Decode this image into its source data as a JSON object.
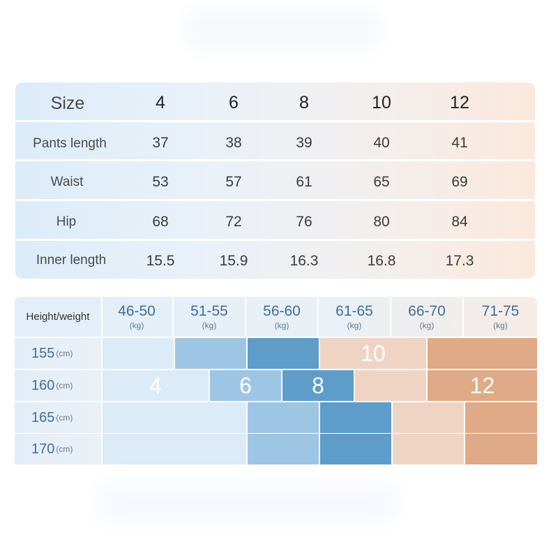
{
  "size_table": {
    "header": {
      "label": "Size",
      "sizes": [
        "4",
        "6",
        "8",
        "10",
        "12"
      ]
    },
    "rows": [
      {
        "label": "Pants length",
        "values": [
          "37",
          "38",
          "39",
          "40",
          "41"
        ]
      },
      {
        "label": "Waist",
        "values": [
          "53",
          "57",
          "61",
          "65",
          "69"
        ]
      },
      {
        "label": "Hip",
        "values": [
          "68",
          "72",
          "76",
          "80",
          "84"
        ]
      },
      {
        "label": "Inner length",
        "values": [
          "15.5",
          "15.9",
          "16.3",
          "16.8",
          "17.3"
        ]
      }
    ]
  },
  "chart_table": {
    "corner_label": "Height/weight",
    "weight_unit": "(kg)",
    "height_unit": "(cm)",
    "weights": [
      "46-50",
      "51-55",
      "56-60",
      "61-65",
      "66-70",
      "71-75"
    ],
    "heights": [
      "155",
      "160",
      "165",
      "170"
    ],
    "size_labels": {
      "r155_10": "10",
      "r160_4": "4",
      "r160_6": "6",
      "r160_8": "8",
      "r160_12": "12"
    },
    "colors": {
      "size4": "#dbebf8",
      "size6": "#9dc6e4",
      "size8": "#5e9dc9",
      "size10": "#f0d4c3",
      "size12": "#dfaa85"
    }
  }
}
